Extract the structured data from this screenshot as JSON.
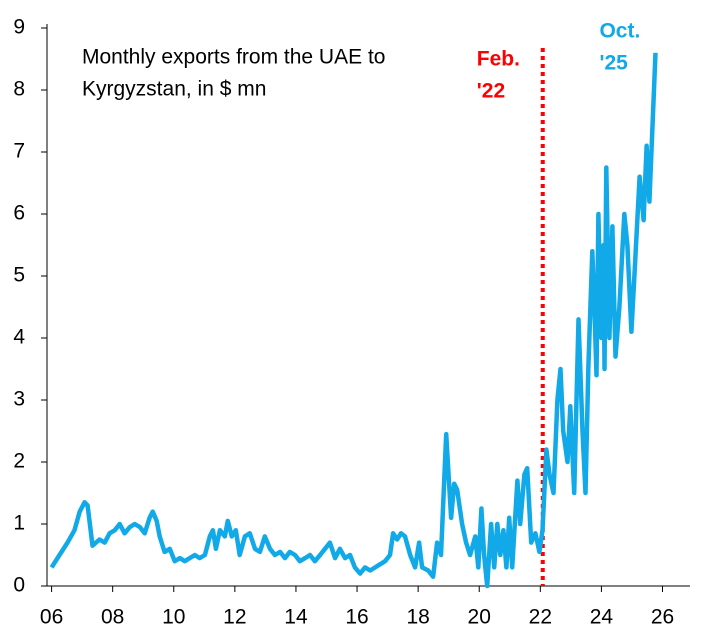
{
  "chart_data": {
    "type": "line",
    "title": [
      "Monthly exports from the UAE to",
      "Kyrgyzstan, in $ mn"
    ],
    "xlim": [
      2005.85,
      2026.9
    ],
    "ylim": [
      0,
      9
    ],
    "xticks": [
      {
        "value": 2006,
        "label": "06"
      },
      {
        "value": 2008,
        "label": "08"
      },
      {
        "value": 2010,
        "label": "10"
      },
      {
        "value": 2012,
        "label": "12"
      },
      {
        "value": 2014,
        "label": "14"
      },
      {
        "value": 2016,
        "label": "16"
      },
      {
        "value": 2018,
        "label": "18"
      },
      {
        "value": 2020,
        "label": "20"
      },
      {
        "value": 2022,
        "label": "22"
      },
      {
        "value": 2024,
        "label": "24"
      },
      {
        "value": 2026,
        "label": "26"
      }
    ],
    "yticks": [
      0,
      1,
      2,
      3,
      4,
      5,
      6,
      7,
      8,
      9
    ],
    "grid": false,
    "x": [
      2006.0,
      2006.26,
      2006.52,
      2006.75,
      2006.92,
      2007.08,
      2007.18,
      2007.34,
      2007.57,
      2007.74,
      2007.9,
      2008.07,
      2008.23,
      2008.39,
      2008.56,
      2008.72,
      2008.89,
      2009.05,
      2009.21,
      2009.31,
      2009.44,
      2009.54,
      2009.7,
      2009.87,
      2010.03,
      2010.2,
      2010.36,
      2010.52,
      2010.69,
      2010.85,
      2011.02,
      2011.18,
      2011.28,
      2011.38,
      2011.51,
      2011.67,
      2011.77,
      2011.9,
      2012.03,
      2012.16,
      2012.33,
      2012.49,
      2012.66,
      2012.82,
      2012.98,
      2013.15,
      2013.31,
      2013.48,
      2013.64,
      2013.8,
      2013.97,
      2014.13,
      2014.3,
      2014.46,
      2014.62,
      2014.79,
      2014.95,
      2015.11,
      2015.28,
      2015.44,
      2015.61,
      2015.77,
      2015.93,
      2016.1,
      2016.26,
      2016.43,
      2016.59,
      2016.75,
      2016.92,
      2017.08,
      2017.18,
      2017.31,
      2017.44,
      2017.57,
      2017.74,
      2017.9,
      2018.03,
      2018.13,
      2018.33,
      2018.49,
      2018.62,
      2018.75,
      2018.92,
      2019.08,
      2019.18,
      2019.28,
      2019.44,
      2019.57,
      2019.7,
      2019.87,
      2019.97,
      2020.07,
      2020.16,
      2020.26,
      2020.39,
      2020.49,
      2020.59,
      2020.69,
      2020.79,
      2020.89,
      2020.98,
      2021.08,
      2021.25,
      2021.34,
      2021.48,
      2021.57,
      2021.7,
      2021.84,
      2021.97,
      2022.07,
      2022.2,
      2022.3,
      2022.43,
      2022.56,
      2022.66,
      2022.75,
      2022.89,
      2022.98,
      2023.11,
      2023.25,
      2023.38,
      2023.48,
      2023.57,
      2023.7,
      2023.77,
      2023.84,
      2023.9,
      2024.0,
      2024.07,
      2024.1,
      2024.16,
      2024.26,
      2024.36,
      2024.46,
      2024.59,
      2024.75,
      2024.85,
      2024.98,
      2025.08,
      2025.25,
      2025.38,
      2025.48,
      2025.57,
      2025.77
    ],
    "series": [
      {
        "color": "#12a9e8",
        "values": [
          0.3,
          0.5,
          0.7,
          0.9,
          1.2,
          1.35,
          1.3,
          0.65,
          0.75,
          0.7,
          0.85,
          0.9,
          1.0,
          0.85,
          0.95,
          1.0,
          0.95,
          0.85,
          1.1,
          1.2,
          1.05,
          0.8,
          0.55,
          0.6,
          0.4,
          0.45,
          0.4,
          0.45,
          0.5,
          0.45,
          0.5,
          0.8,
          0.9,
          0.6,
          0.9,
          0.8,
          1.05,
          0.8,
          0.9,
          0.5,
          0.8,
          0.85,
          0.6,
          0.55,
          0.8,
          0.6,
          0.5,
          0.55,
          0.45,
          0.55,
          0.5,
          0.4,
          0.45,
          0.5,
          0.4,
          0.5,
          0.6,
          0.7,
          0.45,
          0.6,
          0.45,
          0.5,
          0.3,
          0.2,
          0.3,
          0.25,
          0.3,
          0.35,
          0.4,
          0.5,
          0.85,
          0.75,
          0.85,
          0.8,
          0.5,
          0.3,
          0.7,
          0.3,
          0.25,
          0.15,
          0.7,
          0.5,
          2.45,
          1.1,
          1.65,
          1.55,
          1.0,
          0.7,
          0.5,
          0.8,
          0.3,
          1.25,
          0.5,
          0.0,
          1.0,
          0.3,
          1.0,
          0.5,
          0.9,
          0.3,
          1.1,
          0.3,
          1.7,
          1.0,
          1.8,
          1.9,
          0.7,
          0.85,
          0.55,
          0.9,
          2.2,
          1.8,
          1.5,
          3.0,
          3.5,
          2.5,
          2.0,
          2.9,
          1.5,
          4.3,
          2.5,
          1.5,
          3.5,
          5.4,
          4.5,
          3.4,
          6.0,
          4.0,
          5.5,
          3.5,
          6.75,
          4.0,
          5.8,
          3.7,
          4.5,
          6.0,
          5.5,
          4.1,
          5.0,
          6.6,
          5.9,
          7.1,
          6.2,
          8.6
        ]
      }
    ],
    "annotations": [
      {
        "x": 2022.08,
        "text": [
          "Feb.",
          "'22"
        ],
        "color": "#ff0000"
      },
      {
        "x": 2025.77,
        "text": [
          "Oct.",
          "'25"
        ],
        "color": "#12a9e8"
      }
    ]
  }
}
